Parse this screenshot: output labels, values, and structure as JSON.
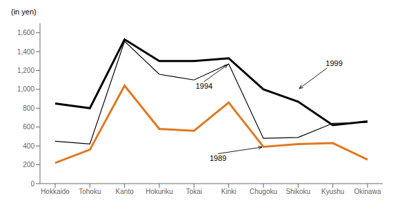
{
  "chart_data": {
    "type": "line",
    "ylabel": "(in yen)",
    "categories": [
      "Hokkaido",
      "Tohoku",
      "Kanto",
      "Hokuriku",
      "Tokai",
      "Kinki",
      "Chugoku",
      "Shikoku",
      "Kyushu",
      "Okinawa"
    ],
    "series": [
      {
        "name": "1989",
        "color": "#e07820",
        "line_style": "solid",
        "values": [
          220,
          360,
          1040,
          580,
          560,
          860,
          390,
          420,
          430,
          255
        ]
      },
      {
        "name": "1994",
        "color": "#000000",
        "line_style": "solid",
        "values": [
          450,
          420,
          1510,
          1160,
          1100,
          1270,
          480,
          490,
          640,
          650
        ]
      },
      {
        "name": "1999",
        "color": "#000000",
        "line_style": "solid",
        "values": [
          850,
          800,
          1530,
          1300,
          1300,
          1330,
          1000,
          870,
          620,
          660
        ]
      }
    ],
    "annotations": [
      {
        "text": "1999",
        "x": "Shikoku",
        "y": 1000
      },
      {
        "text": "1994",
        "x": "Kinki",
        "y": 1270
      },
      {
        "text": "1989",
        "x": "Chugoku",
        "y": 390
      }
    ],
    "ylim": [
      0,
      1700
    ],
    "yticks": [
      0,
      200,
      400,
      600,
      800,
      {
        "value": 1000,
        "label": "1,000"
      },
      {
        "value": 1200,
        "label": "1,200"
      },
      {
        "value": 1400,
        "label": "1,400"
      },
      {
        "value": 1600,
        "label": "1,600"
      }
    ],
    "grid": false
  }
}
